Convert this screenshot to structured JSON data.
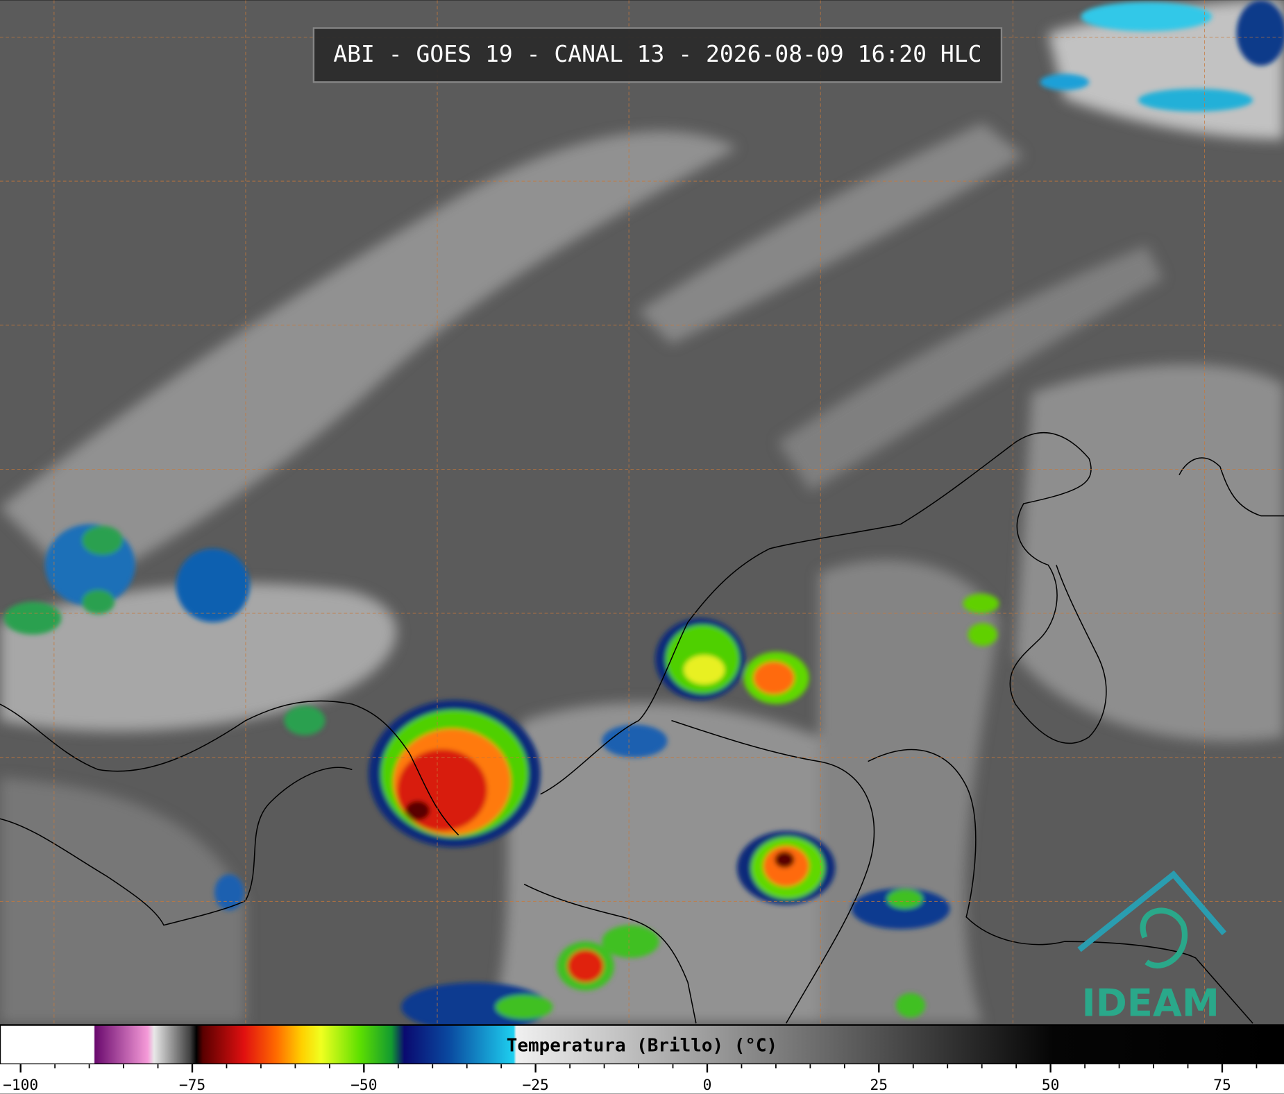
{
  "header": {
    "title": "ABI - GOES 19 - CANAL 13 - 2026-08-09 16:20 HLC"
  },
  "colorbar": {
    "label": "Temperatura (Brillo) (°C)",
    "xlim": [
      -103,
      84
    ],
    "ticks": [
      {
        "value": -100,
        "label": "−100"
      },
      {
        "value": -75,
        "label": "−75"
      },
      {
        "value": -50,
        "label": "−50"
      },
      {
        "value": -25,
        "label": "−25"
      },
      0,
      25,
      50,
      75
    ],
    "minor_ticks": [
      -100,
      -95,
      -90,
      -85,
      -80,
      -75,
      -70,
      -65,
      -60,
      -55,
      -50,
      -45,
      -40,
      -35,
      -30,
      -25,
      -20,
      -15,
      -10,
      -5,
      0,
      5,
      10,
      15,
      20,
      25,
      30,
      35,
      40,
      45,
      50,
      55,
      60,
      65,
      70,
      75,
      80
    ]
  },
  "logo": {
    "text": "IDEAM"
  }
}
